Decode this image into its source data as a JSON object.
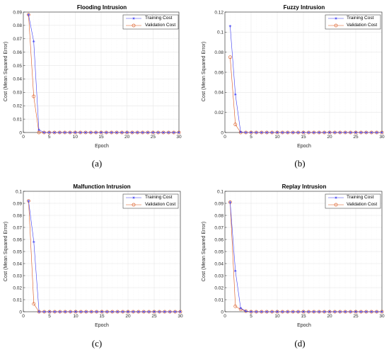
{
  "chart_data": [
    {
      "type": "line",
      "title": "Flooding Intrusion",
      "xlabel": "Epoch",
      "ylabel": "Cost (Mean Squared Error)",
      "xlim": [
        0,
        30
      ],
      "ylim": [
        0,
        0.09
      ],
      "xticks": [
        0,
        5,
        10,
        15,
        20,
        25,
        30
      ],
      "yticks": [
        0,
        0.01,
        0.02,
        0.03,
        0.04,
        0.05,
        0.06,
        0.07,
        0.08,
        0.09
      ],
      "yticklabels": [
        "0",
        "0.01",
        "0.02",
        "0.03",
        "0.04",
        "0.05",
        "0.06",
        "0.07",
        "0.08",
        "0.09"
      ],
      "grid": true,
      "legend": "top-right",
      "caption": "(a)",
      "series": [
        {
          "name": "Training Cost",
          "color": "#3b3bf0",
          "marker": "star",
          "x": [
            1,
            2,
            3,
            4,
            5,
            6,
            7,
            8,
            9,
            10,
            11,
            12,
            13,
            14,
            15,
            16,
            17,
            18,
            19,
            20,
            21,
            22,
            23,
            24,
            25,
            26,
            27,
            28,
            29,
            30
          ],
          "y": [
            0.088,
            0.068,
            0.002,
            0,
            0,
            0,
            0,
            0,
            0,
            0,
            0,
            0,
            0,
            0,
            0,
            0,
            0,
            0,
            0,
            0,
            0,
            0,
            0,
            0,
            0,
            0,
            0,
            0,
            0,
            0
          ]
        },
        {
          "name": "Validation Cost",
          "color": "#d95319",
          "marker": "circle",
          "x": [
            1,
            2,
            3,
            4,
            5,
            6,
            7,
            8,
            9,
            10,
            11,
            12,
            13,
            14,
            15,
            16,
            17,
            18,
            19,
            20,
            21,
            22,
            23,
            24,
            25,
            26,
            27,
            28,
            29,
            30
          ],
          "y": [
            0.088,
            0.027,
            0,
            0,
            0,
            0,
            0,
            0,
            0,
            0,
            0,
            0,
            0,
            0,
            0,
            0,
            0,
            0,
            0,
            0,
            0,
            0,
            0,
            0,
            0,
            0,
            0,
            0,
            0,
            0
          ]
        }
      ]
    },
    {
      "type": "line",
      "title": "Fuzzy Intrusion",
      "xlabel": "Epoch",
      "ylabel": "Cost (Mean Squared Error)",
      "xlim": [
        0,
        30
      ],
      "ylim": [
        0,
        0.12
      ],
      "xticks": [
        0,
        5,
        10,
        15,
        20,
        25,
        30
      ],
      "yticks": [
        0,
        0.02,
        0.04,
        0.06,
        0.08,
        0.1,
        0.12
      ],
      "yticklabels": [
        "0",
        "0.02",
        "0.04",
        "0.06",
        "0.08",
        "0.1",
        "0.12"
      ],
      "grid": true,
      "legend": "top-right",
      "caption": "(b)",
      "series": [
        {
          "name": "Training Cost",
          "color": "#3b3bf0",
          "marker": "star",
          "x": [
            1,
            2,
            3,
            4,
            5,
            6,
            7,
            8,
            9,
            10,
            11,
            12,
            13,
            14,
            15,
            16,
            17,
            18,
            19,
            20,
            21,
            22,
            23,
            24,
            25,
            26,
            27,
            28,
            29,
            30
          ],
          "y": [
            0.106,
            0.038,
            0.0005,
            0,
            0,
            0,
            0,
            0,
            0,
            0,
            0,
            0,
            0,
            0,
            0,
            0,
            0,
            0,
            0,
            0,
            0,
            0,
            0,
            0,
            0,
            0,
            0,
            0,
            0,
            0
          ]
        },
        {
          "name": "Validation Cost",
          "color": "#d95319",
          "marker": "circle",
          "x": [
            1,
            2,
            3,
            4,
            5,
            6,
            7,
            8,
            9,
            10,
            11,
            12,
            13,
            14,
            15,
            16,
            17,
            18,
            19,
            20,
            21,
            22,
            23,
            24,
            25,
            26,
            27,
            28,
            29,
            30
          ],
          "y": [
            0.075,
            0.008,
            0,
            0,
            0,
            0,
            0,
            0,
            0,
            0,
            0,
            0,
            0,
            0,
            0,
            0,
            0,
            0,
            0,
            0,
            0,
            0,
            0,
            0,
            0,
            0,
            0,
            0,
            0,
            0
          ]
        }
      ]
    },
    {
      "type": "line",
      "title": "Malfunction Intrusion",
      "xlabel": "Epoch",
      "ylabel": "Cost (Mean Squared Error)",
      "xlim": [
        0,
        30
      ],
      "ylim": [
        0,
        0.1
      ],
      "xticks": [
        0,
        5,
        10,
        15,
        20,
        25,
        30
      ],
      "yticks": [
        0,
        0.01,
        0.02,
        0.03,
        0.04,
        0.05,
        0.06,
        0.07,
        0.08,
        0.09,
        0.1
      ],
      "yticklabels": [
        "0",
        "0.01",
        "0.02",
        "0.03",
        "0.04",
        "0.05",
        "0.06",
        "0.07",
        "0.08",
        "0.09",
        "0.1"
      ],
      "grid": true,
      "legend": "top-right",
      "caption": "(c)",
      "series": [
        {
          "name": "Training Cost",
          "color": "#3b3bf0",
          "marker": "star",
          "x": [
            1,
            2,
            3,
            4,
            5,
            6,
            7,
            8,
            9,
            10,
            11,
            12,
            13,
            14,
            15,
            16,
            17,
            18,
            19,
            20,
            21,
            22,
            23,
            24,
            25,
            26,
            27,
            28,
            29,
            30
          ],
          "y": [
            0.092,
            0.058,
            0,
            0,
            0,
            0,
            0,
            0,
            0,
            0,
            0,
            0,
            0,
            0,
            0,
            0,
            0,
            0,
            0,
            0,
            0,
            0,
            0,
            0,
            0,
            0,
            0,
            0,
            0,
            0
          ]
        },
        {
          "name": "Validation Cost",
          "color": "#d95319",
          "marker": "circle",
          "x": [
            1,
            2,
            3,
            4,
            5,
            6,
            7,
            8,
            9,
            10,
            11,
            12,
            13,
            14,
            15,
            16,
            17,
            18,
            19,
            20,
            21,
            22,
            23,
            24,
            25,
            26,
            27,
            28,
            29,
            30
          ],
          "y": [
            0.092,
            0.0065,
            0,
            0,
            0,
            0,
            0,
            0,
            0,
            0,
            0,
            0,
            0,
            0,
            0,
            0,
            0,
            0,
            0,
            0,
            0,
            0,
            0,
            0,
            0,
            0,
            0,
            0,
            0,
            0
          ]
        }
      ]
    },
    {
      "type": "line",
      "title": "Replay Intrusion",
      "xlabel": "Epoch",
      "ylabel": "Cost (Mean Squared Error)",
      "xlim": [
        0,
        30
      ],
      "ylim": [
        0,
        0.1
      ],
      "xticks": [
        0,
        5,
        10,
        15,
        20,
        25,
        30
      ],
      "yticks": [
        0,
        0.01,
        0.02,
        0.03,
        0.04,
        0.05,
        0.06,
        0.07,
        0.08,
        0.09,
        0.1
      ],
      "yticklabels": [
        "0",
        "0.01",
        "0.02",
        "0.03",
        "0.04",
        "0.05",
        "0.06",
        "0.07",
        "0.08",
        "0.09",
        "0.1"
      ],
      "grid": true,
      "legend": "top-right",
      "caption": "(d)",
      "series": [
        {
          "name": "Training Cost",
          "color": "#3b3bf0",
          "marker": "star",
          "x": [
            1,
            2,
            3,
            4,
            5,
            6,
            7,
            8,
            9,
            10,
            11,
            12,
            13,
            14,
            15,
            16,
            17,
            18,
            19,
            20,
            21,
            22,
            23,
            24,
            25,
            26,
            27,
            28,
            29,
            30
          ],
          "y": [
            0.091,
            0.034,
            0.003,
            0.0005,
            0,
            0,
            0,
            0,
            0,
            0,
            0,
            0,
            0,
            0,
            0,
            0,
            0,
            0,
            0,
            0,
            0,
            0,
            0,
            0,
            0,
            0,
            0,
            0,
            0,
            0
          ]
        },
        {
          "name": "Validation Cost",
          "color": "#d95319",
          "marker": "circle",
          "x": [
            1,
            2,
            3,
            4,
            5,
            6,
            7,
            8,
            9,
            10,
            11,
            12,
            13,
            14,
            15,
            16,
            17,
            18,
            19,
            20,
            21,
            22,
            23,
            24,
            25,
            26,
            27,
            28,
            29,
            30
          ],
          "y": [
            0.091,
            0.0045,
            0.002,
            0.0005,
            0,
            0,
            0,
            0,
            0,
            0,
            0,
            0,
            0,
            0,
            0,
            0,
            0,
            0,
            0,
            0,
            0,
            0,
            0,
            0,
            0,
            0,
            0,
            0,
            0,
            0
          ]
        }
      ]
    }
  ]
}
